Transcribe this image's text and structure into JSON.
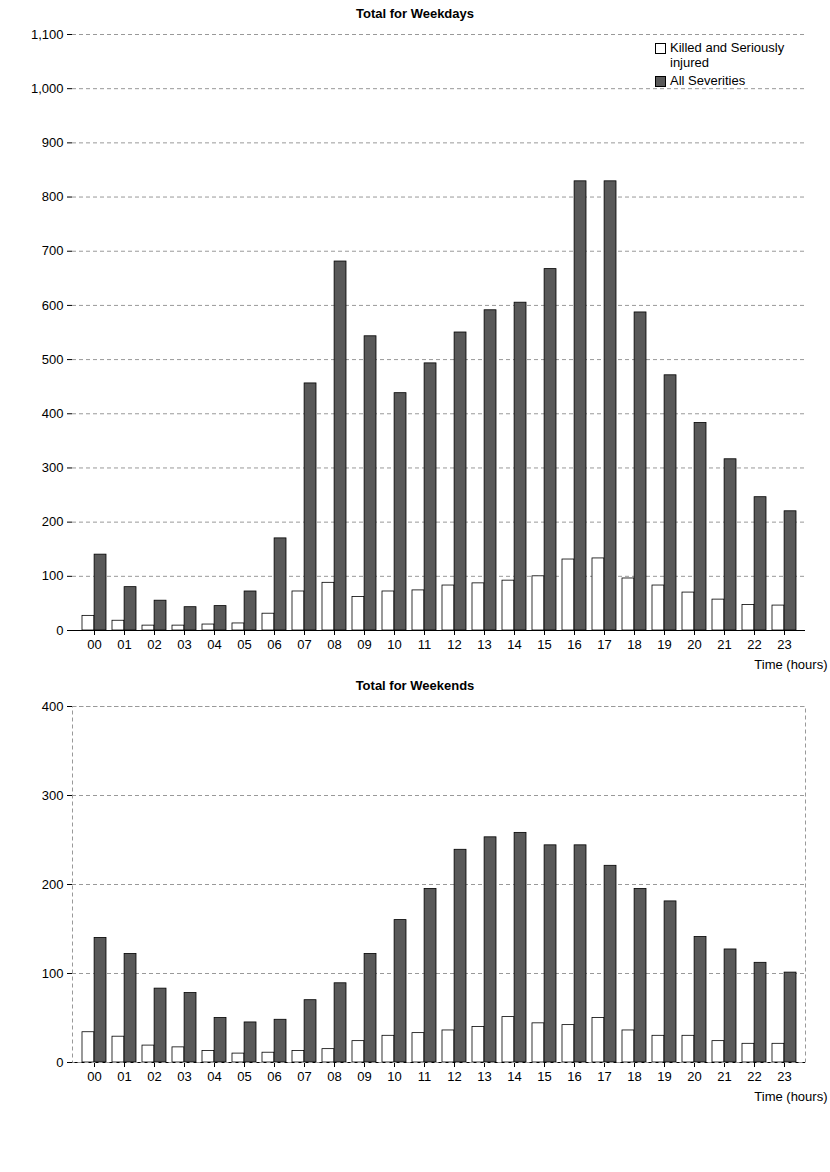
{
  "chart_data": [
    {
      "type": "bar",
      "title": "Total for Weekdays",
      "x_label": "Time (hours)",
      "categories": [
        "00",
        "01",
        "02",
        "03",
        "04",
        "05",
        "06",
        "07",
        "08",
        "09",
        "10",
        "11",
        "12",
        "13",
        "14",
        "15",
        "16",
        "17",
        "18",
        "19",
        "20",
        "21",
        "22",
        "23"
      ],
      "series": [
        {
          "name": "Killed and Seriously injured",
          "color": "#ffffff",
          "values": [
            27,
            18,
            9,
            9,
            11,
            13,
            31,
            72,
            88,
            62,
            72,
            74,
            83,
            87,
            92,
            100,
            131,
            133,
            96,
            83,
            70,
            57,
            47,
            46
          ]
        },
        {
          "name": "All Severities",
          "color": "#595959",
          "values": [
            140,
            80,
            55,
            43,
            45,
            72,
            170,
            456,
            681,
            543,
            438,
            493,
            550,
            591,
            605,
            667,
            829,
            829,
            587,
            471,
            383,
            316,
            246,
            220
          ]
        }
      ],
      "ylim": [
        0,
        1100
      ],
      "yticks": [
        0,
        100,
        200,
        300,
        400,
        500,
        600,
        700,
        800,
        900,
        {
          "value": 1000,
          "label": "1,000"
        },
        {
          "value": 1100,
          "label": "1,100"
        }
      ],
      "grid": true,
      "legend": "top-right"
    },
    {
      "type": "bar",
      "title": "Total for Weekends",
      "x_label": "Time (hours)",
      "categories": [
        "00",
        "01",
        "02",
        "03",
        "04",
        "05",
        "06",
        "07",
        "08",
        "09",
        "10",
        "11",
        "12",
        "13",
        "14",
        "15",
        "16",
        "17",
        "18",
        "19",
        "20",
        "21",
        "22",
        "23"
      ],
      "series": [
        {
          "name": "Killed and Seriously injured",
          "color": "#ffffff",
          "values": [
            34,
            29,
            19,
            17,
            13,
            10,
            11,
            13,
            15,
            24,
            30,
            33,
            36,
            40,
            51,
            44,
            42,
            50,
            36,
            30,
            30,
            24,
            21,
            21
          ]
        },
        {
          "name": "All Severities",
          "color": "#595959",
          "values": [
            140,
            122,
            83,
            78,
            50,
            45,
            48,
            70,
            89,
            122,
            160,
            195,
            239,
            253,
            258,
            244,
            244,
            221,
            195,
            181,
            141,
            127,
            112,
            101
          ]
        }
      ],
      "ylim": [
        0,
        400
      ],
      "yticks": [
        0,
        100,
        200,
        300,
        400
      ],
      "grid": true
    }
  ]
}
